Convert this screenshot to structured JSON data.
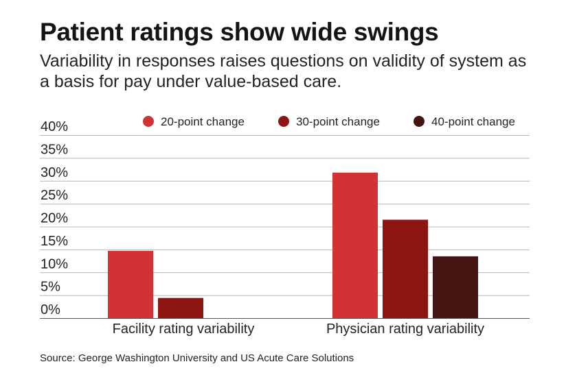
{
  "header": {
    "title": "Patient ratings show wide swings",
    "subtitle": "Variability in responses raises questions on validity of system as a basis for pay under value-based care."
  },
  "footer": {
    "source": "Source: George Washington University and US Acute Care Solutions"
  },
  "colors": {
    "series": [
      "#d03236",
      "#8e1511",
      "#461513"
    ],
    "grid": "#b5b5b5",
    "axis": "#555555"
  },
  "chart_data": {
    "type": "bar",
    "title": "Patient ratings show wide swings",
    "xlabel": "",
    "ylabel": "",
    "ylim": [
      0,
      40
    ],
    "yticks": [
      "0%",
      "5%",
      "10%",
      "15%",
      "20%",
      "25%",
      "30%",
      "35%",
      "40%"
    ],
    "categories": [
      "Facility rating variability",
      "Physician rating variability"
    ],
    "series": [
      {
        "name": "20-point change",
        "values": [
          14.7,
          31.8
        ]
      },
      {
        "name": "30-point change",
        "values": [
          4.4,
          21.5
        ]
      },
      {
        "name": "40-point change",
        "values": [
          0,
          13.5
        ]
      }
    ],
    "legend": "top-right",
    "grid": true
  }
}
